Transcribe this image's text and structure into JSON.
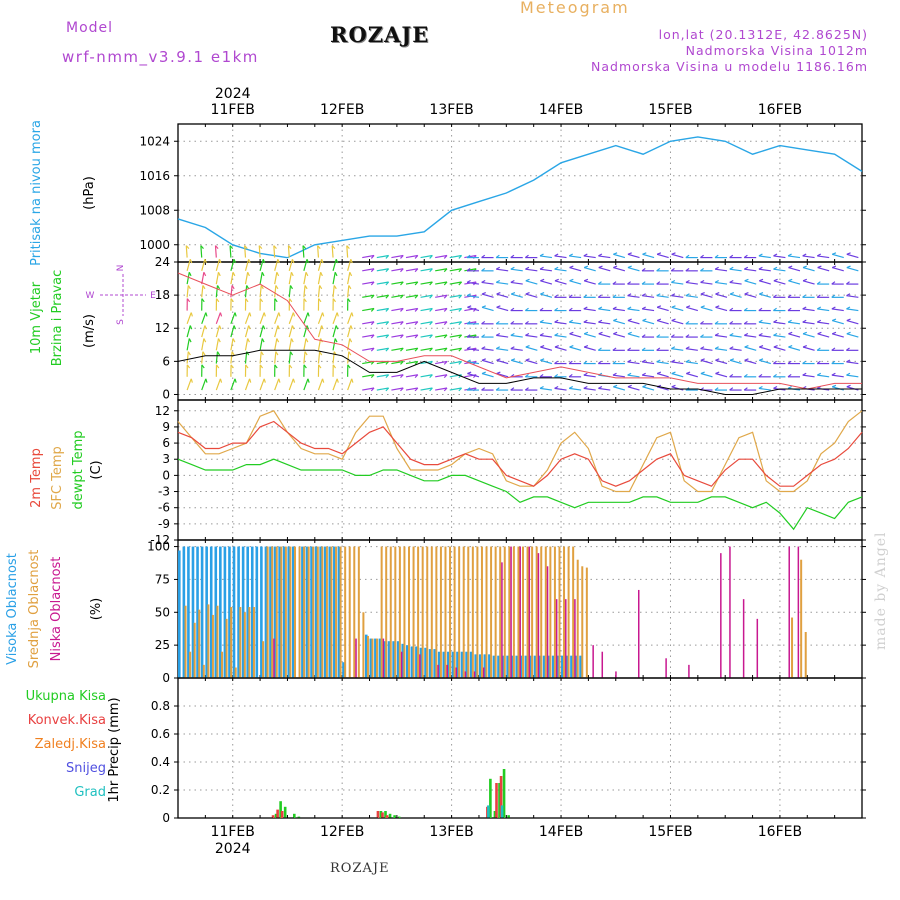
{
  "header": {
    "model_label": "Model",
    "model_run": "wrf-nmm_v3.9.1  e1km",
    "title": "ROZAJE",
    "meteogram_label": "Meteogram",
    "lonlat": "lon,lat (20.1312E, 42.8625N)",
    "elevation": "Nadmorska Visina 1012m",
    "model_elevation": "Nadmorska Visina u modelu 1186.16m"
  },
  "footer": {
    "location": "ROZAJE",
    "credit": "made by Angel"
  },
  "time_axis": {
    "year": "2024",
    "day_labels": [
      "11FEB",
      "12FEB",
      "13FEB",
      "14FEB",
      "15FEB",
      "16FEB"
    ]
  },
  "colors": {
    "pressure": "#2aa6e6",
    "wind_speed": "#000000",
    "gust": "#e8505a",
    "temp_2m": "#e84a3c",
    "temp_sfc": "#e0a84a",
    "dewpoint": "#22cc22",
    "cloud_high": "#2aa0e6",
    "cloud_mid": "#e0a040",
    "cloud_low": "#c81890",
    "precip_total": "#22cc22",
    "precip_conv": "#e84040",
    "precip_frz": "#f08020",
    "precip_snow": "#5050e0",
    "precip_grad": "#20c0c0"
  },
  "chart_data": [
    {
      "type": "line",
      "panel": "pressure",
      "ylabel_left": "Pritisak na nivou mora",
      "unit": "(hPa)",
      "ylim": [
        996,
        1028
      ],
      "yticks": [
        1000,
        1008,
        1016,
        1024
      ],
      "x_hours": [
        0,
        6,
        12,
        18,
        24,
        30,
        36,
        42,
        48,
        54,
        60,
        66,
        72,
        78,
        84,
        90,
        96,
        102,
        108,
        114,
        120,
        126,
        132,
        138,
        144,
        150
      ],
      "values": [
        1006,
        1004,
        1000,
        998,
        997,
        1000,
        1001,
        1002,
        1002,
        1003,
        1008,
        1010,
        1012,
        1015,
        1019,
        1021,
        1023,
        1021,
        1024,
        1025,
        1024,
        1021,
        1023,
        1022,
        1021,
        1017
      ],
      "grid": true
    },
    {
      "type": "line",
      "panel": "wind",
      "ylabel_left": [
        "10m Vjetar",
        "Brzina i Pravac"
      ],
      "unit": "(m/s)",
      "compass": {
        "n": "N",
        "w": "W",
        "e": "E",
        "s": "S"
      },
      "ylim": [
        -1,
        24
      ],
      "yticks": [
        0,
        6,
        12,
        18,
        24
      ],
      "x_hours": [
        0,
        6,
        12,
        18,
        24,
        30,
        36,
        42,
        48,
        54,
        60,
        66,
        72,
        78,
        84,
        90,
        96,
        102,
        108,
        114,
        120,
        126,
        132,
        138,
        144,
        150
      ],
      "series": [
        {
          "name": "speed",
          "values": [
            6,
            7,
            7,
            8,
            8,
            8,
            7,
            4,
            4,
            6,
            4,
            2,
            2,
            3,
            3,
            2,
            2,
            2,
            1,
            1,
            0,
            0,
            1,
            1,
            1,
            1
          ]
        },
        {
          "name": "gust",
          "values": [
            22,
            20,
            18,
            20,
            17,
            10,
            9,
            6,
            6,
            7,
            7,
            5,
            3,
            4,
            5,
            4,
            3,
            3,
            3,
            2,
            2,
            2,
            2,
            1,
            2,
            2
          ]
        }
      ],
      "grid": true
    },
    {
      "type": "line",
      "panel": "temperature",
      "ylabel_left": [
        "2m Temp",
        "SFC Temp",
        "dewpt Temp"
      ],
      "unit": "(C)",
      "ylim": [
        -12,
        14
      ],
      "yticks": [
        12,
        9,
        6,
        3,
        0,
        -3,
        -6,
        -9,
        -12
      ],
      "x_hours": [
        0,
        3,
        6,
        9,
        12,
        15,
        18,
        21,
        24,
        27,
        30,
        33,
        36,
        39,
        42,
        45,
        48,
        51,
        54,
        57,
        60,
        63,
        66,
        69,
        72,
        75,
        78,
        81,
        84,
        87,
        90,
        93,
        96,
        99,
        102,
        105,
        108,
        111,
        114,
        117,
        120,
        123,
        126,
        129,
        132,
        135,
        138,
        141,
        144,
        147,
        150
      ],
      "series": [
        {
          "name": "2m",
          "values": [
            8,
            7,
            5,
            5,
            6,
            6,
            9,
            10,
            8,
            6,
            5,
            5,
            4,
            6,
            8,
            9,
            6,
            3,
            2,
            2,
            3,
            4,
            3,
            3,
            0,
            -1,
            -2,
            0,
            3,
            4,
            3,
            -1,
            -2,
            -1,
            1,
            3,
            4,
            0,
            -1,
            -2,
            1,
            3,
            3,
            0,
            -2,
            -2,
            0,
            2,
            3,
            5,
            8
          ]
        },
        {
          "name": "sfc",
          "values": [
            10,
            7,
            4,
            4,
            5,
            6,
            11,
            12,
            8,
            5,
            4,
            4,
            3,
            8,
            11,
            11,
            5,
            1,
            1,
            1,
            2,
            4,
            5,
            4,
            -1,
            -2,
            -2,
            1,
            6,
            8,
            5,
            -2,
            -3,
            -3,
            2,
            7,
            8,
            -1,
            -3,
            -3,
            2,
            7,
            8,
            -1,
            -3,
            -3,
            -1,
            4,
            6,
            10,
            12
          ]
        },
        {
          "name": "dewpt",
          "values": [
            3,
            2,
            1,
            1,
            1,
            2,
            2,
            3,
            2,
            1,
            1,
            1,
            1,
            0,
            0,
            1,
            1,
            0,
            -1,
            -1,
            0,
            0,
            -1,
            -2,
            -3,
            -5,
            -4,
            -4,
            -5,
            -6,
            -5,
            -5,
            -5,
            -5,
            -4,
            -4,
            -5,
            -5,
            -5,
            -4,
            -4,
            -5,
            -6,
            -5,
            -7,
            -10,
            -6,
            -7,
            -8,
            -5,
            -4
          ]
        }
      ],
      "grid": true
    },
    {
      "type": "bar",
      "panel": "cloud",
      "ylabel_left": [
        "Visoka Oblacnost",
        "Srednja Oblacnost",
        "Niska Oblacnost"
      ],
      "unit": "(%)",
      "ylim": [
        0,
        105
      ],
      "yticks": [
        0,
        25,
        50,
        75,
        100
      ],
      "series": [
        {
          "name": "high",
          "hours": [
            0,
            1,
            2,
            3,
            4,
            5,
            6,
            7,
            8,
            9,
            10,
            11,
            12,
            13,
            14,
            15,
            16,
            17,
            18,
            19,
            20,
            21,
            22,
            23,
            24,
            25,
            27,
            28,
            29,
            30,
            31,
            32,
            33,
            34,
            35,
            36,
            41,
            42,
            43,
            44,
            45,
            46,
            47,
            48,
            49,
            50,
            51,
            52,
            53,
            54,
            55,
            56,
            57,
            58,
            59,
            60,
            61,
            62,
            63,
            64,
            65,
            66,
            67,
            68,
            69,
            70,
            71,
            72,
            73,
            74,
            75,
            76,
            77,
            78,
            79,
            80,
            81,
            82,
            83,
            84,
            85,
            86,
            87,
            88
          ],
          "values": [
            97,
            100,
            100,
            100,
            100,
            100,
            100,
            100,
            100,
            100,
            100,
            100,
            100,
            100,
            100,
            100,
            100,
            100,
            100,
            100,
            100,
            100,
            100,
            100,
            100,
            100,
            100,
            100,
            100,
            100,
            100,
            100,
            100,
            100,
            100,
            12,
            33,
            30,
            30,
            30,
            28,
            28,
            28,
            28,
            26,
            25,
            24,
            24,
            23,
            23,
            22,
            22,
            20,
            20,
            20,
            20,
            20,
            20,
            20,
            20,
            18,
            18,
            18,
            18,
            17,
            17,
            17,
            17,
            17,
            17,
            17,
            17,
            17,
            17,
            17,
            17,
            17,
            17,
            17,
            17,
            17,
            17,
            17,
            17
          ]
        },
        {
          "name": "mid",
          "hours": [
            1,
            2,
            3,
            4,
            5,
            6,
            7,
            8,
            9,
            10,
            11,
            12,
            13,
            14,
            15,
            16,
            17,
            18,
            19,
            20,
            21,
            22,
            23,
            24,
            25,
            26,
            27,
            28,
            29,
            30,
            31,
            32,
            33,
            34,
            35,
            36,
            37,
            38,
            39,
            40,
            41,
            42,
            43,
            44,
            45,
            46,
            47,
            48,
            49,
            50,
            51,
            52,
            53,
            54,
            55,
            56,
            57,
            58,
            59,
            60,
            61,
            62,
            63,
            64,
            65,
            66,
            67,
            68,
            69,
            70,
            71,
            72,
            73,
            74,
            75,
            76,
            77,
            78,
            79,
            80,
            81,
            82,
            83,
            84,
            85,
            86,
            87,
            88,
            89,
            134,
            136,
            137
          ],
          "values": [
            55,
            20,
            42,
            52,
            10,
            56,
            48,
            55,
            20,
            45,
            54,
            8,
            54,
            50,
            54,
            54,
            0,
            28,
            100,
            100,
            100,
            100,
            100,
            100,
            100,
            100,
            100,
            100,
            100,
            100,
            100,
            100,
            100,
            100,
            100,
            100,
            100,
            100,
            100,
            50,
            32,
            30,
            30,
            100,
            100,
            100,
            100,
            100,
            100,
            100,
            100,
            100,
            100,
            100,
            100,
            100,
            100,
            100,
            100,
            100,
            100,
            100,
            100,
            100,
            100,
            100,
            100,
            100,
            100,
            100,
            100,
            100,
            100,
            100,
            100,
            100,
            100,
            100,
            100,
            100,
            100,
            100,
            100,
            100,
            100,
            100,
            90,
            85,
            84,
            46,
            90,
            35
          ]
        },
        {
          "name": "low",
          "hours": [
            20,
            38,
            44,
            48,
            52,
            56,
            58,
            60,
            62,
            64,
            66,
            70,
            72,
            74,
            76,
            78,
            80,
            82,
            84,
            86,
            90,
            92,
            95,
            100,
            106,
            111,
            118,
            120,
            123,
            126,
            133,
            135
          ],
          "values": [
            30,
            30,
            30,
            20,
            18,
            10,
            10,
            8,
            5,
            5,
            8,
            88,
            100,
            100,
            100,
            95,
            85,
            60,
            60,
            60,
            25,
            20,
            5,
            67,
            15,
            10,
            95,
            100,
            60,
            45,
            100,
            100
          ]
        }
      ],
      "grid": true
    },
    {
      "type": "bar",
      "panel": "precip",
      "ylabel_left": "1hr Precip (mm)",
      "ylim": [
        0,
        1.0
      ],
      "yticks": [
        0,
        0.2,
        0.4,
        0.6,
        0.8
      ],
      "legend": [
        "Ukupna  Kisa",
        "Konvek.Kisa",
        "Zaledj.Kisa",
        "Snijeg",
        "Grad"
      ],
      "series": [
        {
          "name": "Ukupna Kisa",
          "hours": [
            21,
            22,
            23,
            25,
            26,
            44,
            45,
            46,
            47,
            48,
            68,
            69,
            70,
            71,
            72
          ],
          "values": [
            0.03,
            0.12,
            0.08,
            0.03,
            0.01,
            0.05,
            0.05,
            0.03,
            0.02,
            0.01,
            0.28,
            0.05,
            0.25,
            0.35,
            0.02
          ]
        },
        {
          "name": "Konvek.Kisa",
          "hours": [
            21,
            22,
            23,
            44,
            45,
            46,
            68,
            70,
            71
          ],
          "values": [
            0.02,
            0.06,
            0.05,
            0.05,
            0.04,
            0.02,
            0.08,
            0.25,
            0.3
          ]
        },
        {
          "name": "Grad",
          "hours": [
            68,
            71
          ],
          "values": [
            0.09,
            0.09
          ]
        }
      ],
      "grid": true
    }
  ]
}
